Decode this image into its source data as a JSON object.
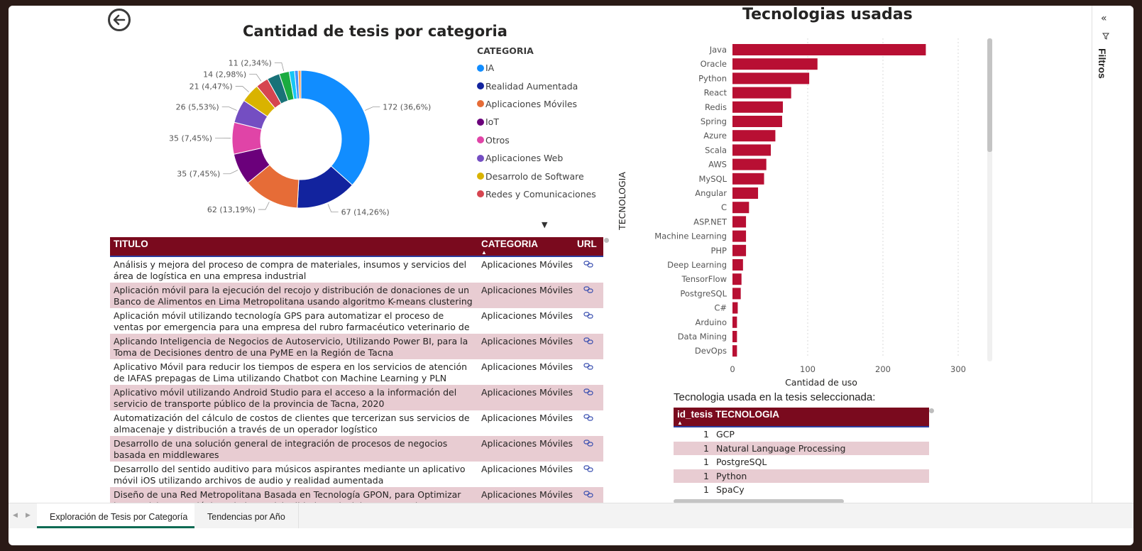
{
  "donut": {
    "title": "Cantidad de tesis por categoria",
    "legend_title": "CATEGORIA",
    "legend": [
      {
        "label": "IA",
        "color": "#118DFF"
      },
      {
        "label": "Realidad Aumentada",
        "color": "#12239E"
      },
      {
        "label": "Aplicaciones Móviles",
        "color": "#E66C37"
      },
      {
        "label": "IoT",
        "color": "#6B007B"
      },
      {
        "label": "Otros",
        "color": "#E044A7"
      },
      {
        "label": "Aplicaciones Web",
        "color": "#744EC2"
      },
      {
        "label": "Desarrolo de Software",
        "color": "#D9B300"
      },
      {
        "label": "Redes y Comunicaciones",
        "color": "#D64550"
      }
    ],
    "more_arrow": "▼"
  },
  "chart_data": [
    {
      "type": "pie",
      "title": "Cantidad de tesis por categoria",
      "slices": [
        {
          "value": 172,
          "label": "172 (36,6%)",
          "color": "#118DFF"
        },
        {
          "value": 67,
          "label": "67 (14,26%)",
          "color": "#12239E"
        },
        {
          "value": 62,
          "label": "62 (13,19%)",
          "color": "#E66C37"
        },
        {
          "value": 35,
          "label": "35 (7,45%)",
          "color": "#6B007B"
        },
        {
          "value": 35,
          "label": "35 (7,45%)",
          "color": "#E044A7"
        },
        {
          "value": 26,
          "label": "26 (5,53%)",
          "color": "#744EC2"
        },
        {
          "value": 21,
          "label": "21 (4,47%)",
          "color": "#D9B300"
        },
        {
          "value": 14,
          "label": "14 (2,98%)",
          "color": "#D64550"
        },
        {
          "value": 14,
          "label": "",
          "color": "#197278"
        },
        {
          "value": 11,
          "label": "11 (2,34%)",
          "color": "#1AAB40"
        },
        {
          "value": 6,
          "label": "",
          "color": "#15C6F4"
        },
        {
          "value": 4,
          "label": "",
          "color": "#4092FF"
        },
        {
          "value": 3,
          "label": "",
          "color": "#FFA058"
        }
      ]
    },
    {
      "type": "bar",
      "orientation": "horizontal",
      "title": "Tecnologias usadas",
      "xlabel": "Cantidad de uso",
      "ylabel": "TECNOLOGIA",
      "xlim": [
        0,
        300
      ],
      "xticks": [
        0,
        100,
        200,
        300
      ],
      "color": "#B80F33",
      "categories": [
        "Java",
        "Oracle",
        "Python",
        "React",
        "Redis",
        "Spring",
        "Azure",
        "Scala",
        "AWS",
        "MySQL",
        "Angular",
        "C",
        "ASP.NET",
        "Machine Learning",
        "PHP",
        "Deep Learning",
        "TensorFlow",
        "PostgreSQL",
        "C#",
        "Arduino",
        "Data Mining",
        "DevOps"
      ],
      "values": [
        257,
        113,
        102,
        78,
        67,
        66,
        57,
        51,
        45,
        42,
        34,
        22,
        18,
        18,
        18,
        14,
        12,
        11,
        7,
        6,
        6,
        6
      ]
    }
  ],
  "table1": {
    "headers": {
      "titulo": "TITULO",
      "categoria": "CATEGORIA",
      "url": "URL"
    },
    "rows": [
      {
        "titulo": "Análisis y mejora del proceso de compra de materiales, insumos y servicios del área de logística en una empresa industrial",
        "categoria": "Aplicaciones Móviles"
      },
      {
        "titulo": "Aplicación móvil para la ejecución del recojo y distribución de donaciones de un Banco de Alimentos en Lima Metropolitana usando algoritmo K-means clustering",
        "categoria": "Aplicaciones Móviles"
      },
      {
        "titulo": "Aplicación móvil utilizando tecnología GPS para automatizar el proceso de ventas por emergencia para una empresa del rubro farmacéutico veterinario de la actividad hípica",
        "categoria": "Aplicaciones Móviles"
      },
      {
        "titulo": "Aplicando Inteligencia de Negocios de Autoservicio, Utilizando Power BI, para la Toma de Decisiones dentro de una PyME en la Región de Tacna",
        "categoria": "Aplicaciones Móviles"
      },
      {
        "titulo": "Aplicativo Móvil para reducir los tiempos de espera en los servicios de atención de IAFAS prepagas de Lima utilizando Chatbot con Machine Learning y PLN",
        "categoria": "Aplicaciones Móviles"
      },
      {
        "titulo": "Aplicativo móvil utilizando Android Studio para el acceso a la información del servicio de transporte público de la provincia de Tacna, 2020",
        "categoria": "Aplicaciones Móviles"
      },
      {
        "titulo": "Automatización del cálculo de costos de clientes que tercerizan sus servicios de almacenaje y distribución a través de un operador logístico",
        "categoria": "Aplicaciones Móviles"
      },
      {
        "titulo": "Desarrollo de una solución general de integración de procesos de negocios basada en middlewares",
        "categoria": "Aplicaciones Móviles"
      },
      {
        "titulo": "Desarrollo del sentido auditivo para músicos aspirantes mediante un aplicativo móvil iOS utilizando archivos de audio y realidad aumentada",
        "categoria": "Aplicaciones Móviles"
      },
      {
        "titulo": "Diseño de una Red Metropolitana Basada en Tecnología GPON, para Optimizar los Servicios Tecnológicos de la Municipalidad Provincial Jorge Basadre, en Beneficio de la",
        "categoria": "Aplicaciones Móviles"
      }
    ]
  },
  "table2": {
    "title": "Tecnologia usada en la tesis seleccionada:",
    "headers": {
      "id": "id_tesis",
      "tech": "TECNOLOGIA"
    },
    "rows": [
      {
        "id": "1",
        "tech": "GCP"
      },
      {
        "id": "1",
        "tech": "Natural Language Processing"
      },
      {
        "id": "1",
        "tech": "PostgreSQL"
      },
      {
        "id": "1",
        "tech": "Python"
      },
      {
        "id": "1",
        "tech": "SpaCy"
      }
    ]
  },
  "filters_pane": {
    "label": "Filtros",
    "collapse_icon": "«",
    "filter_icon": "filter-icon"
  },
  "tabs": [
    {
      "label": "Exploración de Tesis por Categoría",
      "active": true
    },
    {
      "label": "Tendencias por Año",
      "active": false
    }
  ]
}
